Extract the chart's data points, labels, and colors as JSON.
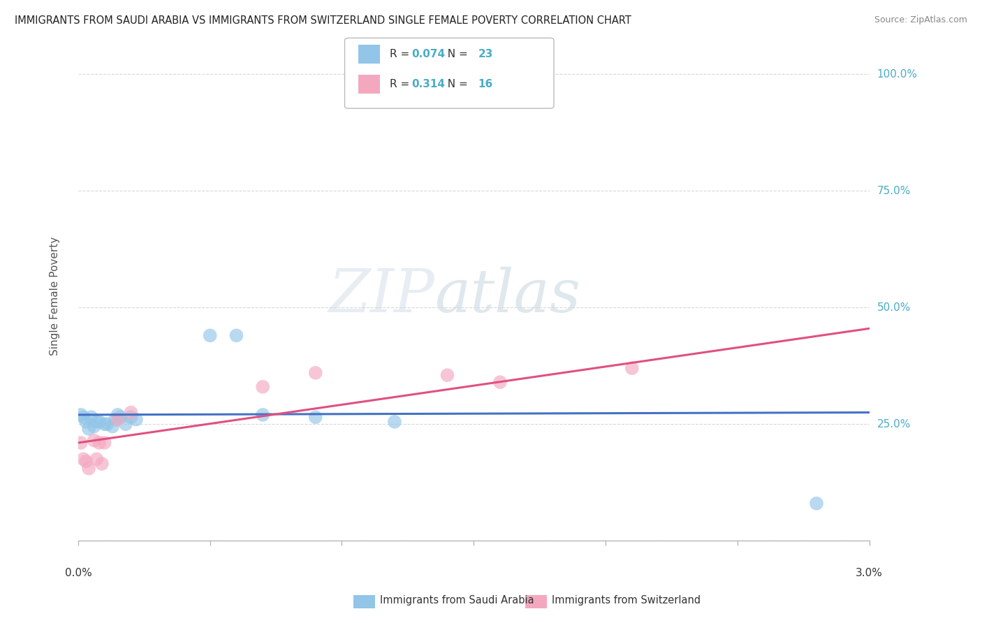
{
  "title": "IMMIGRANTS FROM SAUDI ARABIA VS IMMIGRANTS FROM SWITZERLAND SINGLE FEMALE POVERTY CORRELATION CHART",
  "source": "Source: ZipAtlas.com",
  "ylabel": "Single Female Poverty",
  "yaxis_labels": [
    "25.0%",
    "50.0%",
    "75.0%",
    "100.0%"
  ],
  "yaxis_vals": [
    0.25,
    0.5,
    0.75,
    1.0
  ],
  "legend_entries": [
    {
      "r": "0.074",
      "n": "23",
      "color": "#92c5e8"
    },
    {
      "r": "0.314",
      "n": "16",
      "color": "#f4a8c0"
    }
  ],
  "legend_bottom": [
    {
      "label": "Immigrants from Saudi Arabia",
      "color": "#92c5e8"
    },
    {
      "label": "Immigrants from Switzerland",
      "color": "#f4a8c0"
    }
  ],
  "saudi_x": [
    0.0001,
    0.0002,
    0.0003,
    0.0004,
    0.0005,
    0.0006,
    0.0007,
    0.0008,
    0.001,
    0.0011,
    0.0013,
    0.0014,
    0.0015,
    0.0016,
    0.0018,
    0.002,
    0.0022,
    0.005,
    0.006,
    0.007,
    0.009,
    0.012,
    0.028
  ],
  "saudi_y": [
    0.27,
    0.265,
    0.255,
    0.24,
    0.265,
    0.245,
    0.255,
    0.255,
    0.25,
    0.25,
    0.245,
    0.26,
    0.27,
    0.265,
    0.25,
    0.265,
    0.26,
    0.44,
    0.44,
    0.27,
    0.265,
    0.255,
    0.08
  ],
  "swiss_x": [
    0.0001,
    0.0002,
    0.0003,
    0.0004,
    0.0006,
    0.0007,
    0.0008,
    0.0009,
    0.001,
    0.0015,
    0.002,
    0.007,
    0.009,
    0.014,
    0.016,
    0.021
  ],
  "swiss_y": [
    0.21,
    0.175,
    0.17,
    0.155,
    0.215,
    0.175,
    0.21,
    0.165,
    0.21,
    0.26,
    0.275,
    0.33,
    0.36,
    0.355,
    0.34,
    0.37
  ],
  "saudi_color": "#92c5e8",
  "swiss_color": "#f4a8c0",
  "saudi_line_color": "#4472c4",
  "swiss_line_color": "#e05080",
  "xlim": [
    0,
    0.03
  ],
  "ylim": [
    0,
    1.05
  ],
  "watermark_zip": "ZIP",
  "watermark_atlas": "atlas",
  "background_color": "#ffffff",
  "grid_color": "#d8d8d8"
}
